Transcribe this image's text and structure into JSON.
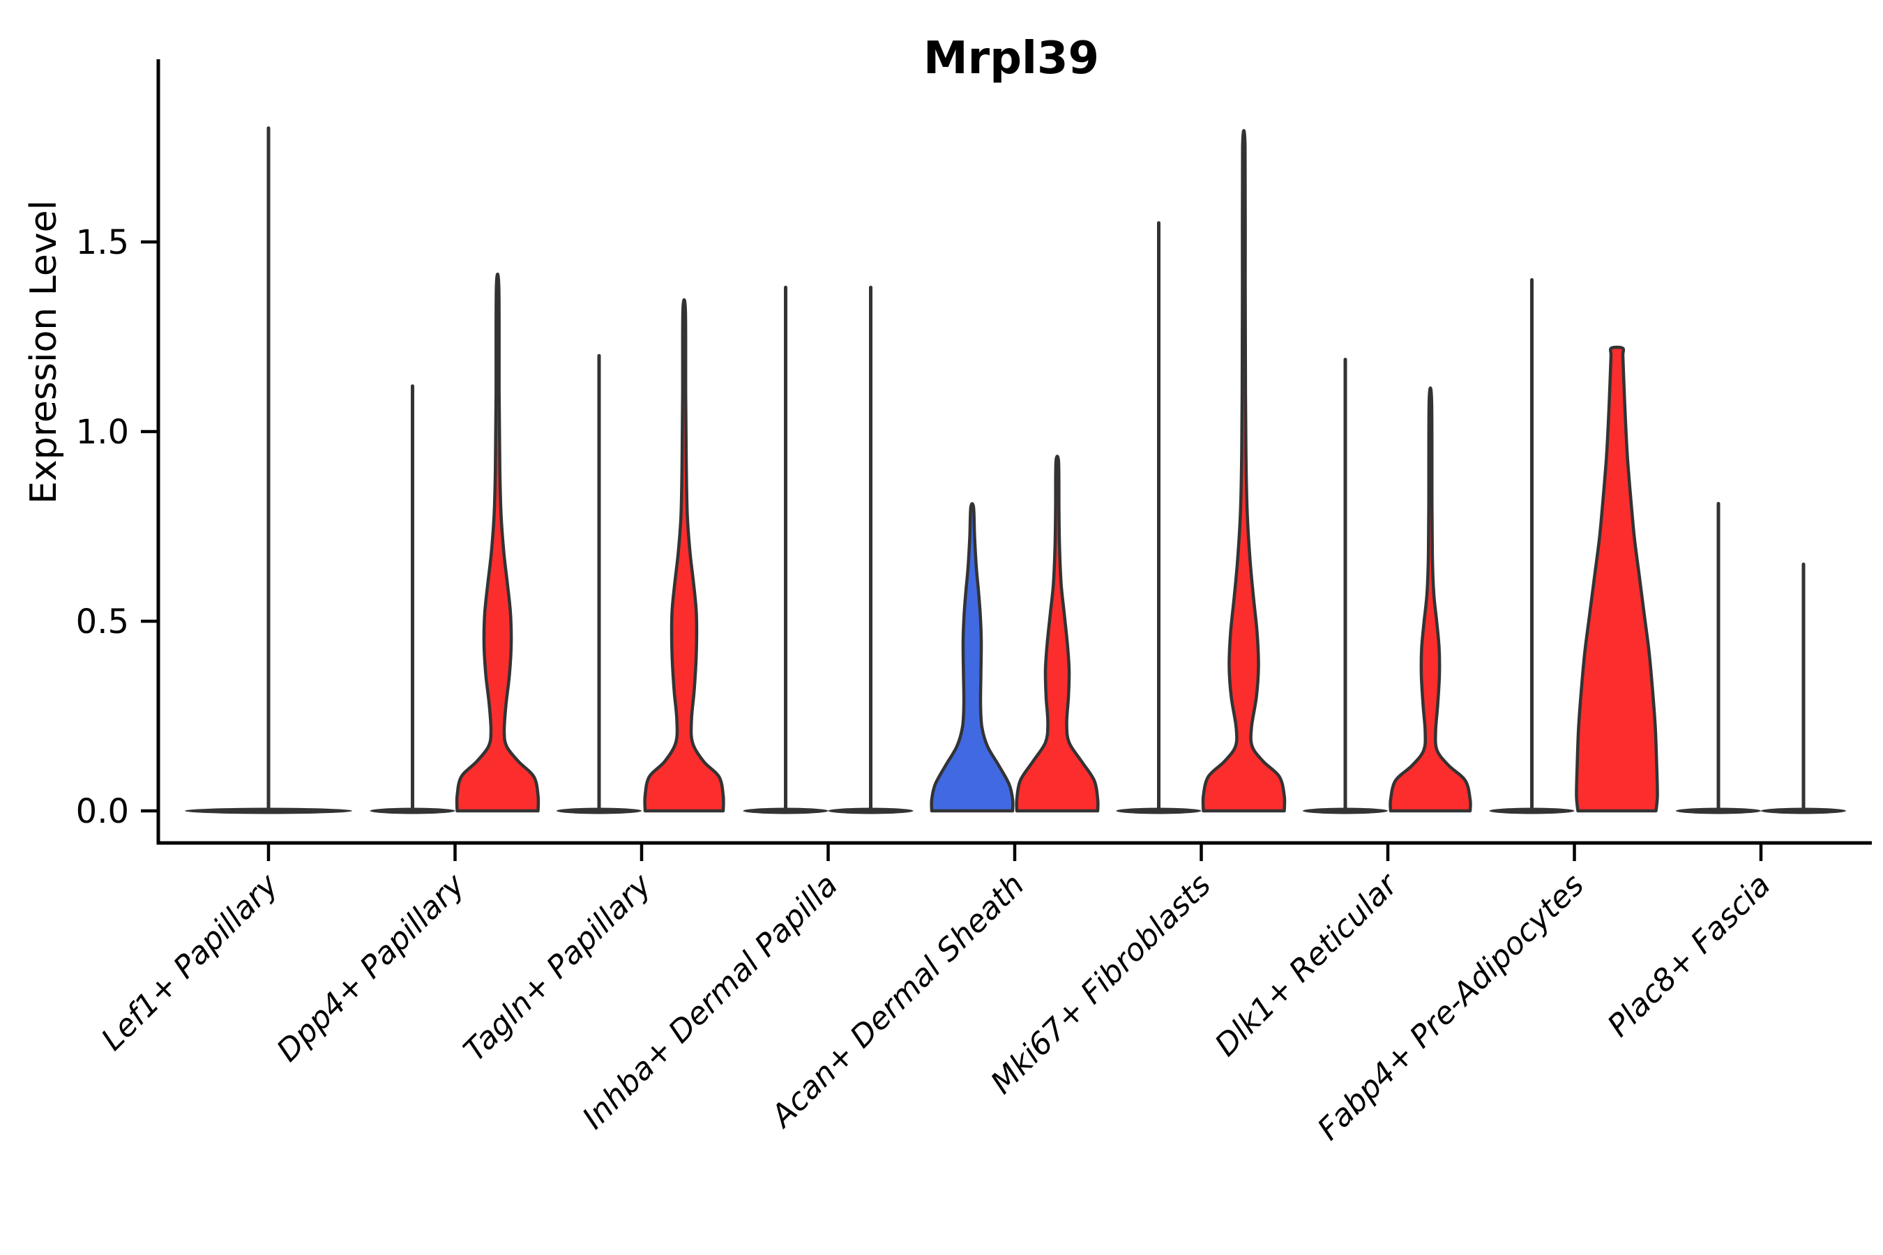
{
  "title": "Mrpl39",
  "y_axis": {
    "label": "Expression Level",
    "tick_labels": [
      "0.0",
      "0.5",
      "1.0",
      "1.5"
    ],
    "tick_values": [
      0.0,
      0.5,
      1.0,
      1.5
    ]
  },
  "x_axis": {
    "categories": [
      "Lef1+ Papillary",
      "Dpp4+ Papillary",
      "Tagln+ Papillary",
      "Inhba+ Dermal Papilla",
      "Acan+ Dermal Sheath",
      "Mki67+ Fibroblasts",
      "Dlk1+ Reticular",
      "Fabp4+ Pre-Adipocytes",
      "Plac8+ Fascia"
    ]
  },
  "colors": {
    "red": "#fb2d2d",
    "blue": "#4169e1",
    "edge": "#333333",
    "axis": "#000000",
    "background": "#ffffff"
  },
  "chart_data": {
    "type": "violin",
    "title": "Mrpl39",
    "xlabel": "",
    "ylabel": "Expression Level",
    "ylim": [
      0,
      1.9
    ],
    "yticks": [
      0.0,
      0.5,
      1.0,
      1.5
    ],
    "grid": false,
    "legend": "none",
    "description": "Split violin plot of Mrpl39 expression level per fibroblast cell-type cluster; two violins per category (left mostly collapsed/blue, right red). Values estimated from axis.",
    "categories": [
      "Lef1+ Papillary",
      "Dpp4+ Papillary",
      "Tagln+ Papillary",
      "Inhba+ Dermal Papilla",
      "Acan+ Dermal Sheath",
      "Mki67+ Fibroblasts",
      "Dlk1+ Reticular",
      "Fabp4+ Pre-Adipocytes",
      "Plac8+ Fascia"
    ],
    "groups": [
      {
        "category": "Lef1+ Papillary",
        "violins": [
          {
            "pos": "center",
            "kind": "needle",
            "max": 1.8,
            "color": "edge",
            "pancake_hw": 120
          }
        ]
      },
      {
        "category": "Dpp4+ Papillary",
        "violins": [
          {
            "pos": "left",
            "kind": "needle",
            "max": 1.12,
            "color": "edge",
            "pancake_hw": 61
          },
          {
            "pos": "right",
            "kind": "violin",
            "max": 1.38,
            "color": "red",
            "profile": [
              [
                0,
                58
              ],
              [
                0.04,
                58
              ],
              [
                0.09,
                52
              ],
              [
                0.13,
                30
              ],
              [
                0.17,
                13
              ],
              [
                0.21,
                9.5
              ],
              [
                0.28,
                12
              ],
              [
                0.36,
                17
              ],
              [
                0.44,
                19.5
              ],
              [
                0.52,
                18.5
              ],
              [
                0.6,
                14
              ],
              [
                0.68,
                9
              ],
              [
                0.78,
                5
              ],
              [
                0.9,
                3.2
              ],
              [
                1.1,
                2.2
              ],
              [
                1.38,
                1.8
              ]
            ]
          }
        ]
      },
      {
        "category": "Tagln+ Papillary",
        "violins": [
          {
            "pos": "left",
            "kind": "needle",
            "max": 1.2,
            "color": "edge",
            "pancake_hw": 61
          },
          {
            "pos": "right",
            "kind": "violin",
            "max": 1.32,
            "color": "red",
            "profile": [
              [
                0,
                56
              ],
              [
                0.04,
                56
              ],
              [
                0.09,
                50
              ],
              [
                0.13,
                28
              ],
              [
                0.18,
                12
              ],
              [
                0.24,
                10.5
              ],
              [
                0.32,
                14.5
              ],
              [
                0.42,
                17.5
              ],
              [
                0.52,
                17.5
              ],
              [
                0.6,
                13.5
              ],
              [
                0.68,
                8.5
              ],
              [
                0.78,
                4.5
              ],
              [
                0.92,
                3
              ],
              [
                1.1,
                2.2
              ],
              [
                1.32,
                1.8
              ]
            ]
          }
        ]
      },
      {
        "category": "Inhba+ Dermal Papilla",
        "violins": [
          {
            "pos": "left",
            "kind": "needle",
            "max": 1.38,
            "color": "edge",
            "pancake_hw": 61
          },
          {
            "pos": "right",
            "kind": "needle",
            "max": 1.38,
            "color": "edge",
            "pancake_hw": 61
          }
        ]
      },
      {
        "category": "Acan+ Dermal Sheath",
        "violins": [
          {
            "pos": "left",
            "kind": "violin",
            "max": 0.8,
            "color": "blue",
            "profile": [
              [
                0,
                58
              ],
              [
                0.03,
                58
              ],
              [
                0.07,
                53
              ],
              [
                0.12,
                38
              ],
              [
                0.17,
                22
              ],
              [
                0.22,
                14
              ],
              [
                0.28,
                12
              ],
              [
                0.36,
                12.5
              ],
              [
                0.45,
                13
              ],
              [
                0.52,
                11.5
              ],
              [
                0.58,
                9
              ],
              [
                0.64,
                6
              ],
              [
                0.72,
                3.5
              ],
              [
                0.8,
                2
              ]
            ]
          },
          {
            "pos": "right",
            "kind": "violin",
            "max": 0.92,
            "color": "red",
            "profile": [
              [
                0,
                58
              ],
              [
                0.03,
                58
              ],
              [
                0.08,
                53
              ],
              [
                0.13,
                35
              ],
              [
                0.18,
                17
              ],
              [
                0.23,
                13.5
              ],
              [
                0.3,
                16
              ],
              [
                0.37,
                17
              ],
              [
                0.44,
                14.5
              ],
              [
                0.52,
                10
              ],
              [
                0.6,
                5.5
              ],
              [
                0.7,
                3.2
              ],
              [
                0.8,
                2.4
              ],
              [
                0.92,
                1.9
              ]
            ]
          }
        ]
      },
      {
        "category": "Mki67+ Fibroblasts",
        "violins": [
          {
            "pos": "left",
            "kind": "needle",
            "max": 1.55,
            "color": "edge",
            "pancake_hw": 61
          },
          {
            "pos": "right",
            "kind": "violin",
            "max": 1.75,
            "color": "red",
            "profile": [
              [
                0,
                58
              ],
              [
                0.04,
                58
              ],
              [
                0.09,
                51
              ],
              [
                0.13,
                28
              ],
              [
                0.17,
                12
              ],
              [
                0.22,
                11
              ],
              [
                0.3,
                18
              ],
              [
                0.38,
                21
              ],
              [
                0.47,
                19
              ],
              [
                0.56,
                14
              ],
              [
                0.66,
                9
              ],
              [
                0.78,
                5
              ],
              [
                0.92,
                3.2
              ],
              [
                1.1,
                2.4
              ],
              [
                1.4,
                2
              ],
              [
                1.75,
                1.8
              ]
            ]
          }
        ]
      },
      {
        "category": "Dlk1+ Reticular",
        "violins": [
          {
            "pos": "left",
            "kind": "needle",
            "max": 1.19,
            "color": "edge",
            "pancake_hw": 61
          },
          {
            "pos": "right",
            "kind": "violin",
            "max": 1.08,
            "color": "red",
            "profile": [
              [
                0,
                57
              ],
              [
                0.03,
                57
              ],
              [
                0.08,
                50
              ],
              [
                0.12,
                26
              ],
              [
                0.16,
                9.5
              ],
              [
                0.21,
                7.5
              ],
              [
                0.28,
                10.5
              ],
              [
                0.36,
                13
              ],
              [
                0.43,
                12.5
              ],
              [
                0.5,
                9
              ],
              [
                0.57,
                5
              ],
              [
                0.66,
                3
              ],
              [
                0.8,
                2.3
              ],
              [
                1.08,
                1.8
              ]
            ]
          }
        ]
      },
      {
        "category": "Fabp4+ Pre-Adipocytes",
        "violins": [
          {
            "pos": "left",
            "kind": "needle",
            "max": 1.4,
            "color": "edge",
            "pancake_hw": 61
          },
          {
            "pos": "right",
            "kind": "violin",
            "max": 1.22,
            "color": "red",
            "profile": [
              [
                0,
                56
              ],
              [
                0.04,
                58
              ],
              [
                0.12,
                57
              ],
              [
                0.22,
                55
              ],
              [
                0.32,
                51
              ],
              [
                0.42,
                46
              ],
              [
                0.52,
                39
              ],
              [
                0.62,
                32
              ],
              [
                0.72,
                25
              ],
              [
                0.82,
                20
              ],
              [
                0.92,
                15.5
              ],
              [
                1.0,
                13
              ],
              [
                1.08,
                11
              ],
              [
                1.15,
                9.5
              ],
              [
                1.2,
                8.5
              ],
              [
                1.22,
                8
              ]
            ]
          }
        ]
      },
      {
        "category": "Plac8+ Fascia",
        "violins": [
          {
            "pos": "left",
            "kind": "needle",
            "max": 0.81,
            "color": "edge",
            "pancake_hw": 61
          },
          {
            "pos": "right",
            "kind": "needle",
            "max": 0.65,
            "color": "edge",
            "pancake_hw": 61
          }
        ]
      }
    ]
  }
}
